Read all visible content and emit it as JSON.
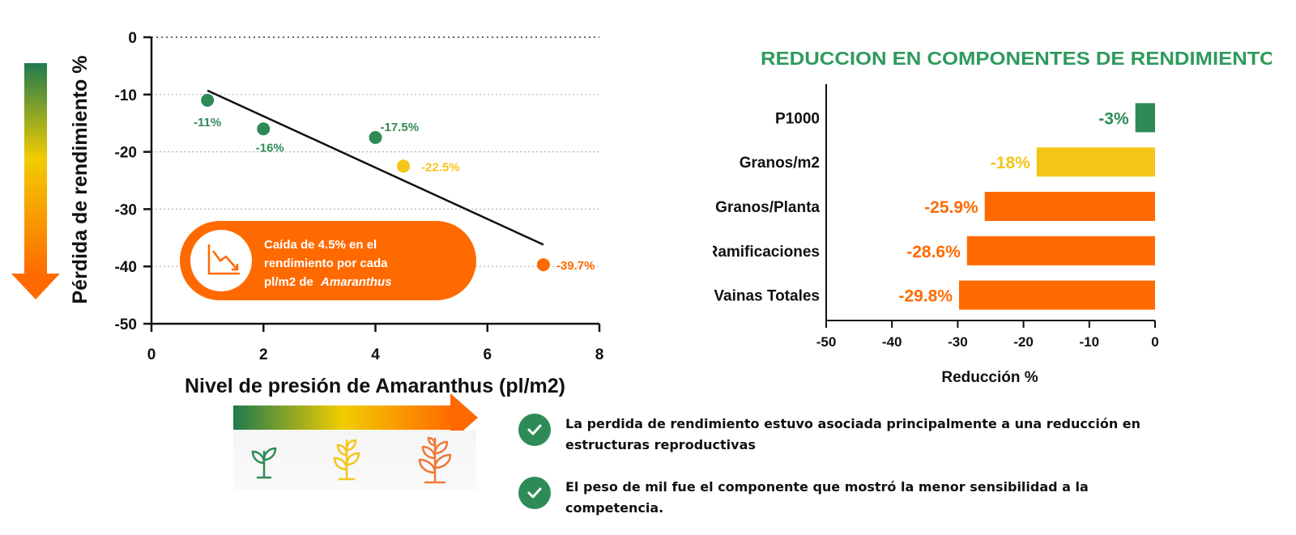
{
  "colors": {
    "green": "#2e8b57",
    "yellow": "#f5c518",
    "orange": "#ff6a00",
    "title_green": "#2e9a5c"
  },
  "chart_data": [
    {
      "type": "scatter",
      "xlabel": "Nivel de presión de Amaranthus (pl/m2)",
      "ylabel": "Pérdida de rendimiento %",
      "xlim": [
        0,
        8
      ],
      "ylim": [
        -50,
        0
      ],
      "xticks": [
        "0",
        "2",
        "4",
        "6",
        "8"
      ],
      "yticks": [
        "0",
        "-10",
        "-20",
        "-30",
        "-40",
        "-50"
      ],
      "grid": "horizontal-dotted",
      "points": [
        {
          "x": 1,
          "y": -11,
          "label": "-11%",
          "color": "#2e8b57"
        },
        {
          "x": 2,
          "y": -16,
          "label": "-16%",
          "color": "#2e8b57"
        },
        {
          "x": 4,
          "y": -17.5,
          "label": "-17.5%",
          "color": "#2e8b57"
        },
        {
          "x": 4.5,
          "y": -22.5,
          "label": "-22.5%",
          "color": "#f5c518"
        },
        {
          "x": 7,
          "y": -39.7,
          "label": "-39.7%",
          "color": "#ff6a00"
        }
      ],
      "trendline": {
        "x": [
          1,
          7
        ],
        "y": [
          -9.3,
          -36.2
        ]
      },
      "callout": {
        "line1": "Caída de 4.5% en el",
        "line2": "rendimiento por cada",
        "line3_prefix": "pl/m2 de",
        "line3_italic": "Amaranthus"
      }
    },
    {
      "type": "bar",
      "orientation": "horizontal",
      "title": "REDUCCION EN COMPONENTES DE RENDIMIENTO",
      "xlabel": "Reducción %",
      "xlim": [
        -50,
        0
      ],
      "xticks": [
        "-50",
        "-40",
        "-30",
        "-20",
        "-10",
        "0"
      ],
      "categories": [
        "P1000",
        "Granos/m2",
        "Granos/Planta",
        "Ramificaciones",
        "Vainas Totales"
      ],
      "values": [
        -3,
        -18,
        -25.9,
        -28.6,
        -29.8
      ],
      "labels": [
        "-3%",
        "-18%",
        "-25.9%",
        "-28.6%",
        "-29.8%"
      ],
      "bar_colors": [
        "#2e8b57",
        "#f5c518",
        "#ff6a00",
        "#ff6a00",
        "#ff6a00"
      ]
    }
  ],
  "findings": [
    "La perdida de rendimiento estuvo asociada principalmente a una reducción en estructuras reproductivas",
    "El peso de mil fue el componente que mostró la menor sensibilidad a la competencia."
  ],
  "icons": {
    "callout": "declining-chart-icon",
    "check": "check-circle-icon",
    "plants": [
      "small-plant-icon",
      "medium-plant-icon",
      "large-plant-icon"
    ]
  }
}
